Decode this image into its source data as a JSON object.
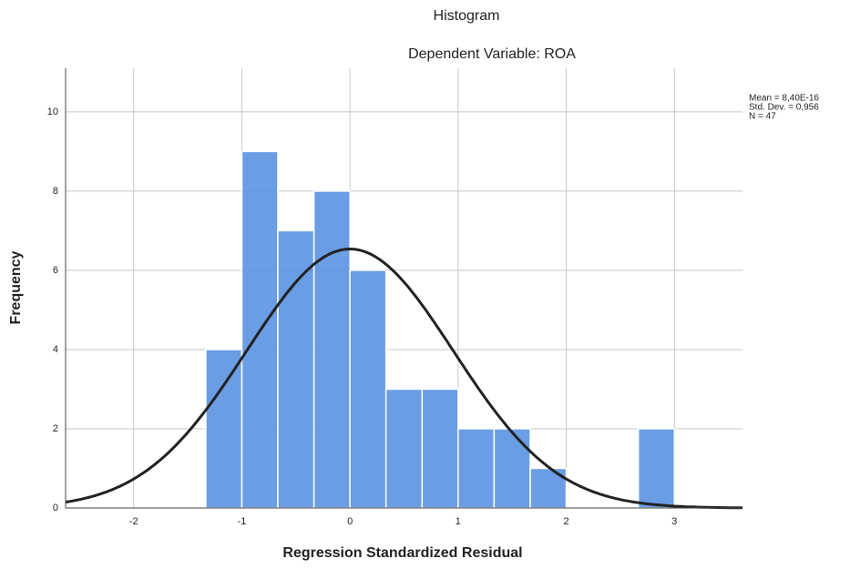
{
  "chart_data": {
    "type": "histogram",
    "title": "Histogram",
    "subtitle": "Dependent Variable: ROA",
    "x_label": "Regression Standardized Residual",
    "y_label": "Frequency",
    "bins": [
      -1.333,
      -1,
      -0.667,
      -0.333,
      0,
      0.333,
      0.667,
      1,
      1.333,
      1.667,
      2,
      2.333,
      2.667,
      3
    ],
    "values": [
      4,
      9,
      7,
      8,
      6,
      3,
      3,
      2,
      2,
      1,
      0,
      0,
      2
    ],
    "color": "#5590e0",
    "curve_color": "#222222",
    "stats": {
      "mean": {
        "value": 8.4e-16,
        "label": "Mean = 8,40E-16"
      },
      "sd": {
        "value": 0.956,
        "label": "Std. Dev. = 0,956"
      },
      "n": {
        "value": 47,
        "label": "N = 47"
      }
    },
    "xlim": [
      -2.63,
      3.63
    ],
    "xticks": [
      -2,
      -1,
      0,
      1,
      2,
      3
    ],
    "ylim": [
      0,
      11.1
    ],
    "yticks": [
      0,
      2,
      4,
      6,
      8,
      10
    ],
    "grid": true
  }
}
